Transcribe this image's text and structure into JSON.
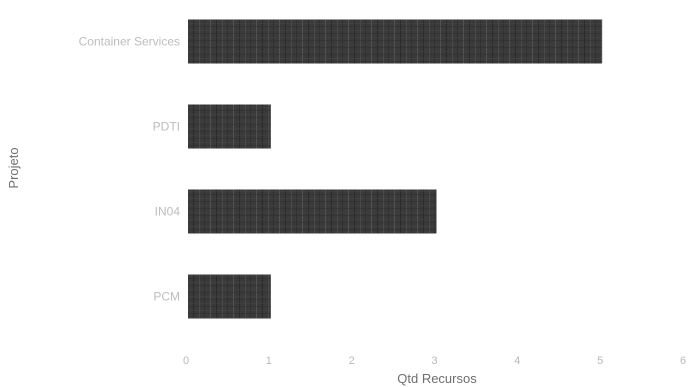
{
  "chart_data": {
    "type": "bar",
    "orientation": "horizontal",
    "categories": [
      "Container Services",
      "PDTI",
      "IN04",
      "PCM"
    ],
    "values": [
      5,
      1,
      3,
      1
    ],
    "xlabel": "Qtd Recursos",
    "ylabel": "Projeto",
    "xlim": [
      0,
      6
    ],
    "xticks": [
      "0",
      "1",
      "2",
      "3",
      "4",
      "5",
      "6"
    ],
    "grid": false,
    "bar_color": "#3a3a3a"
  }
}
